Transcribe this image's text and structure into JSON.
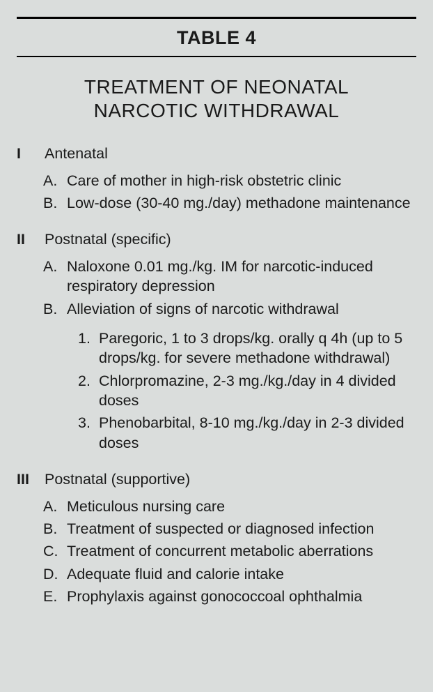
{
  "table_label": "TABLE 4",
  "title_line1": "TREATMENT OF NEONATAL",
  "title_line2": "NARCOTIC WITHDRAWAL",
  "colors": {
    "background": "#dadddc",
    "text": "#1a1a1a",
    "rule": "#000000"
  },
  "typography": {
    "font_family": "Helvetica, Arial, sans-serif",
    "table_label_fontsize_pt": 20,
    "title_fontsize_pt": 21,
    "body_fontsize_pt": 16,
    "table_label_weight": 700,
    "roman_weight": 700
  },
  "sections": [
    {
      "roman": "I",
      "title": "Antenatal",
      "letters": [
        {
          "marker": "A.",
          "text": "Care of mother in high-risk obstetric clinic"
        },
        {
          "marker": "B.",
          "text": "Low-dose (30-40 mg./day) methadone maintenance"
        }
      ]
    },
    {
      "roman": "II",
      "title": "Postnatal (specific)",
      "letters": [
        {
          "marker": "A.",
          "text": "Naloxone 0.01 mg./kg. IM for narcotic-induced respiratory depression"
        },
        {
          "marker": "B.",
          "text": "Alleviation of signs of narcotic withdrawal",
          "numbers": [
            {
              "marker": "1.",
              "text": "Paregoric, 1 to 3 drops/kg. orally q 4h (up to 5 drops/kg. for severe methadone withdrawal)"
            },
            {
              "marker": "2.",
              "text": "Chlorpromazine, 2-3 mg./kg./day in 4 divided doses"
            },
            {
              "marker": "3.",
              "text": "Phenobarbital, 8-10 mg./kg./day in 2-3 divided doses"
            }
          ]
        }
      ]
    },
    {
      "roman": "III",
      "title": "Postnatal (supportive)",
      "letters": [
        {
          "marker": "A.",
          "text": "Meticulous nursing care"
        },
        {
          "marker": "B.",
          "text": "Treatment of suspected or diagnosed infection"
        },
        {
          "marker": "C.",
          "text": "Treatment of concurrent metabolic aberrations"
        },
        {
          "marker": "D.",
          "text": "Adequate fluid and calorie intake"
        },
        {
          "marker": "E.",
          "text": "Prophylaxis against gonococcoal ophthalmia"
        }
      ]
    }
  ]
}
